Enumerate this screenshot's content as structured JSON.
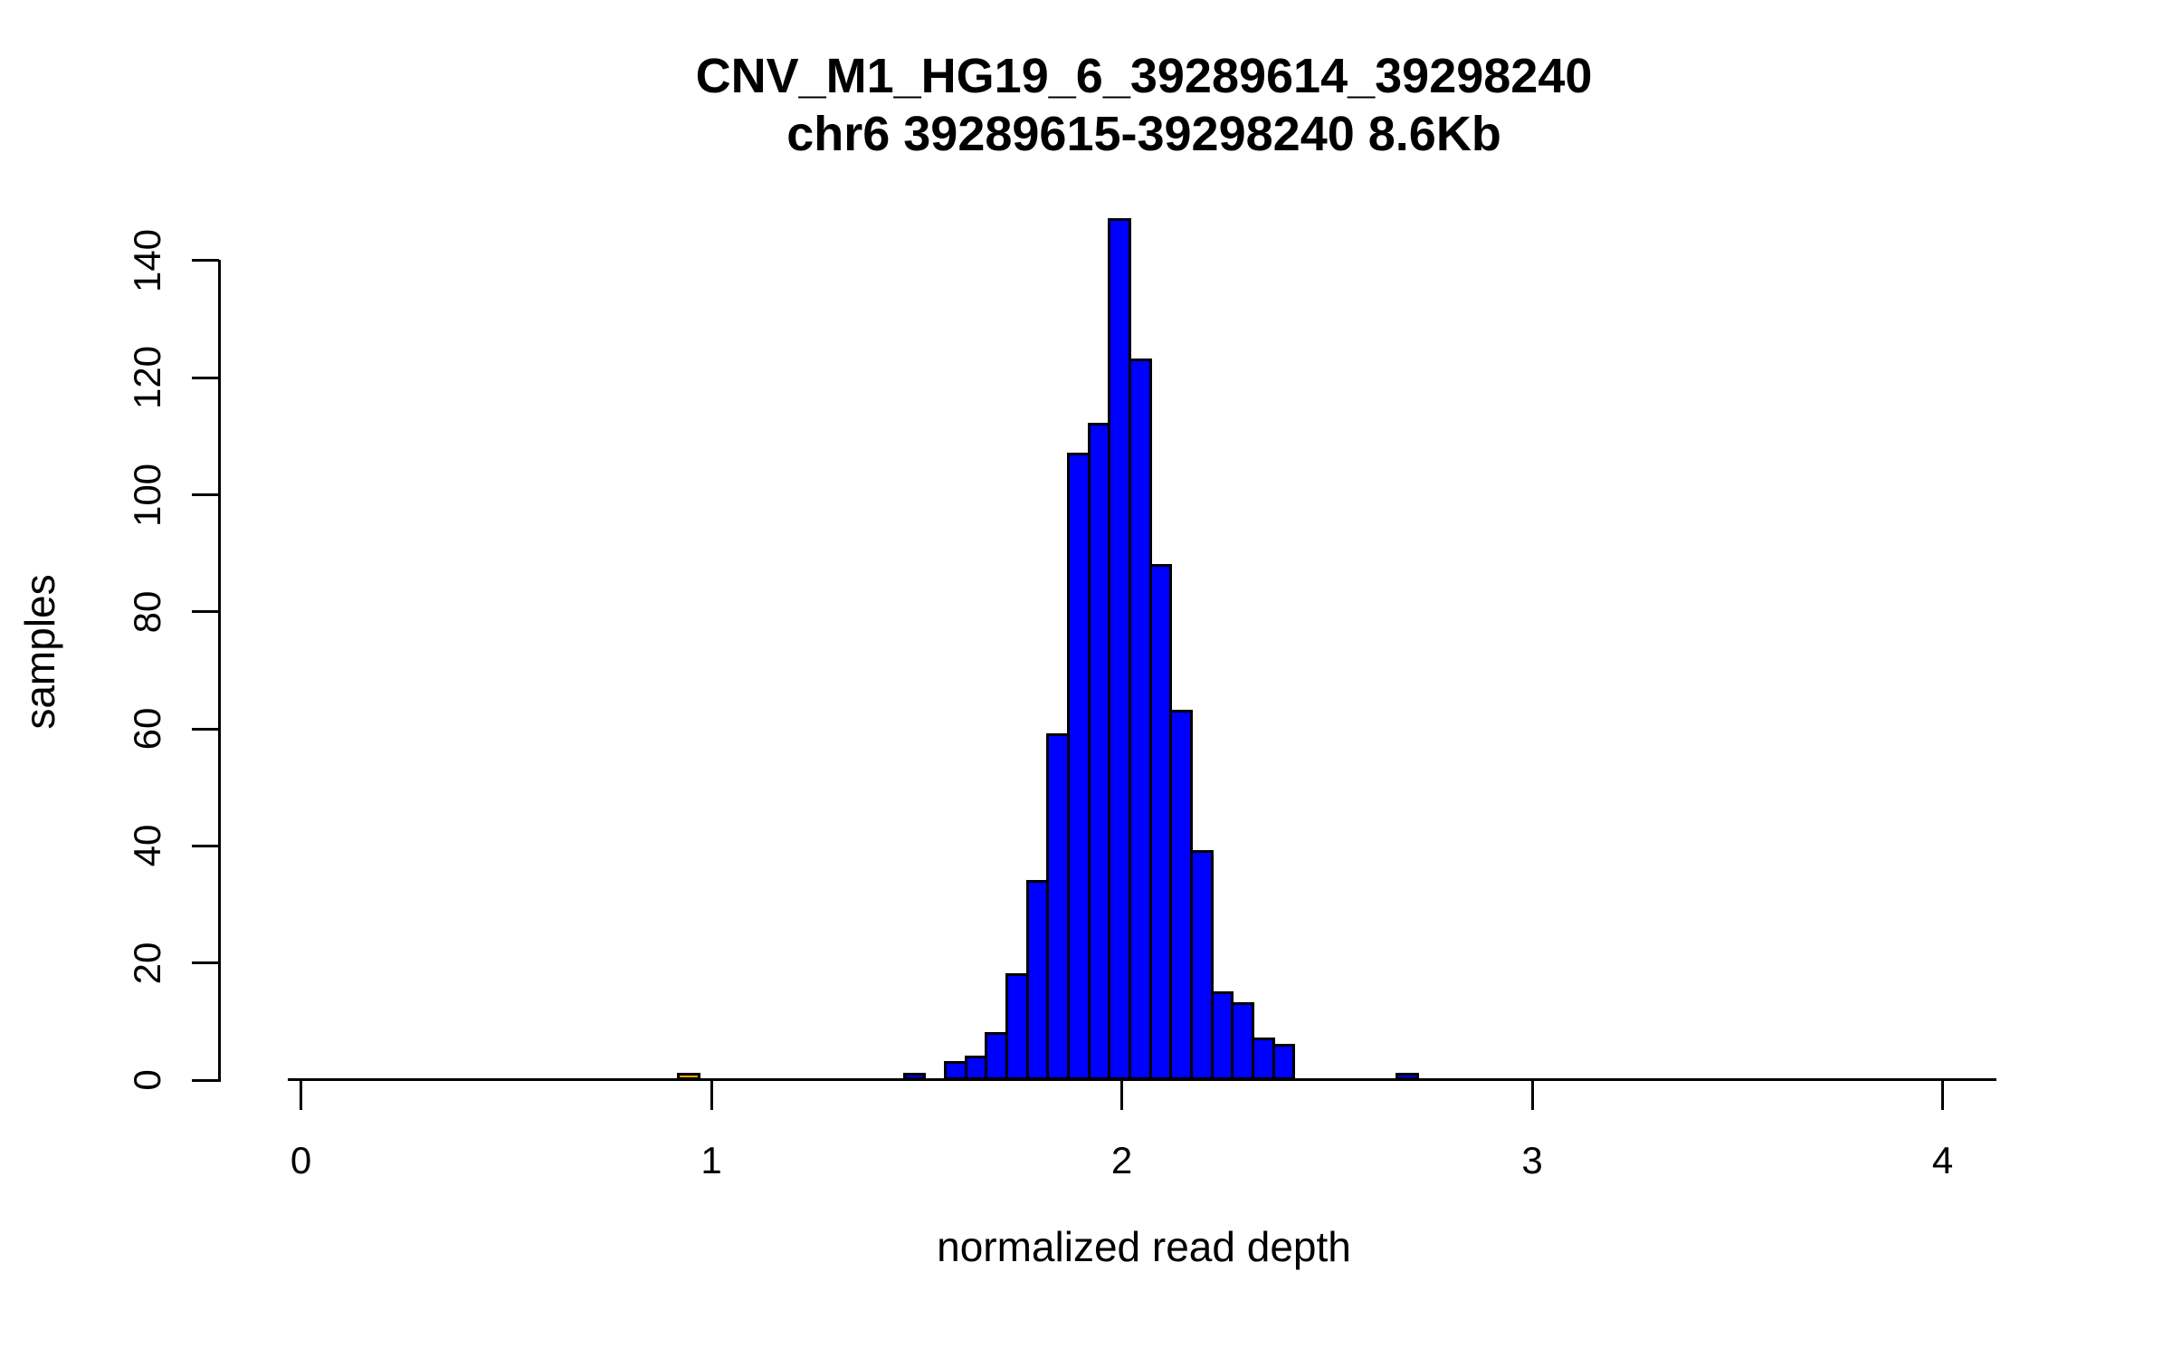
{
  "title": {
    "line1": "CNV_M1_HG19_6_39289614_39298240",
    "line2": "chr6 39289615-39298240 8.6Kb"
  },
  "chart_data": {
    "type": "bar",
    "subtype": "histogram",
    "title": "CNV_M1_HG19_6_39289614_39298240 / chr6 39289615-39298240 8.6Kb",
    "xlabel": "normalized read depth",
    "ylabel": "samples",
    "bin_width": 0.05,
    "xlim": [
      -0.03,
      4.13
    ],
    "ylim": [
      0,
      147
    ],
    "grid": false,
    "legend": false,
    "colors": {
      "bar_fill": "#0000FF",
      "highlight_fill": "#FFA500",
      "stroke": "#000000",
      "background": "#FFFFFF"
    },
    "x_ticks": [
      0,
      1,
      2,
      3,
      4
    ],
    "y_ticks": [
      0,
      20,
      40,
      60,
      80,
      100,
      120,
      140
    ],
    "bars": [
      {
        "start": 0.92,
        "end": 0.97,
        "count": 1,
        "color": "#FFA500"
      },
      {
        "start": 1.47,
        "end": 1.52,
        "count": 1
      },
      {
        "start": 1.57,
        "end": 1.62,
        "count": 3
      },
      {
        "start": 1.62,
        "end": 1.67,
        "count": 4
      },
      {
        "start": 1.67,
        "end": 1.72,
        "count": 8
      },
      {
        "start": 1.72,
        "end": 1.77,
        "count": 18
      },
      {
        "start": 1.77,
        "end": 1.82,
        "count": 34
      },
      {
        "start": 1.82,
        "end": 1.87,
        "count": 59
      },
      {
        "start": 1.87,
        "end": 1.92,
        "count": 107
      },
      {
        "start": 1.92,
        "end": 1.97,
        "count": 112
      },
      {
        "start": 1.97,
        "end": 2.02,
        "count": 147
      },
      {
        "start": 2.02,
        "end": 2.07,
        "count": 123
      },
      {
        "start": 2.07,
        "end": 2.12,
        "count": 88
      },
      {
        "start": 2.12,
        "end": 2.17,
        "count": 63
      },
      {
        "start": 2.17,
        "end": 2.22,
        "count": 39
      },
      {
        "start": 2.22,
        "end": 2.27,
        "count": 15
      },
      {
        "start": 2.27,
        "end": 2.32,
        "count": 13
      },
      {
        "start": 2.32,
        "end": 2.37,
        "count": 7
      },
      {
        "start": 2.37,
        "end": 2.42,
        "count": 6
      },
      {
        "start": 2.67,
        "end": 2.72,
        "count": 1
      }
    ]
  }
}
